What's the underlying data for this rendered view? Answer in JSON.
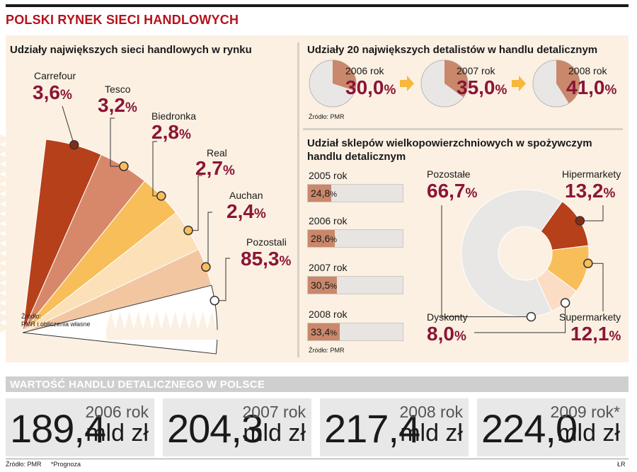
{
  "main_title": "POLSKI RYNEK SIECI HANDLOWYCH",
  "colors": {
    "title_red": "#b5121b",
    "value_red": "#8b1536",
    "panel_bg": "#fbf0e2"
  },
  "chart_data": [
    {
      "type": "pie",
      "title": "Udziały największych sieci handlowych w rynku",
      "labels": [
        "Carrefour",
        "Tesco",
        "Biedronka",
        "Real",
        "Auchan",
        "Pozostali"
      ],
      "values": [
        3.6,
        3.2,
        2.8,
        2.7,
        2.4,
        85.3
      ],
      "display": [
        "3,6",
        "3,2",
        "2,8",
        "2,7",
        "2,4",
        "85,3"
      ],
      "unit": "%",
      "colors": [
        "#b5401a",
        "#d8886a",
        "#f7be5a",
        "#fbe0b8",
        "#f3c6a2",
        "#ffffff"
      ],
      "source_label": "Źródło:",
      "source": "PMR i obliczenia własne"
    },
    {
      "type": "pie",
      "title": "Udziały 20 największych detalistów w handlu detalicznym",
      "years": [
        "2006 rok",
        "2007 rok",
        "2008 rok"
      ],
      "values": [
        30.0,
        35.0,
        41.0
      ],
      "display": [
        "30,0",
        "35,0",
        "41,0"
      ],
      "unit": "%",
      "source": "Źródło: PMR"
    },
    {
      "type": "bar",
      "title": "Udział sklepów wielkopowierzchniowych w spożywczym handlu detalicznym",
      "categories": [
        "2005 rok",
        "2006 rok",
        "2007 rok",
        "2008 rok"
      ],
      "values": [
        24.8,
        28.6,
        30.5,
        33.4
      ],
      "display": [
        "24,8",
        "28,6",
        "30,5",
        "33,4"
      ],
      "unit": "%",
      "xlim": [
        0,
        100
      ],
      "source": "Źródło: PMR"
    },
    {
      "type": "pie",
      "title": "Udział sklepów wielkopowierzchniowych w spożywczym handlu detalicznym (struktura)",
      "labels": [
        "Pozostałe",
        "Hipermarkety",
        "Supermarkety",
        "Dyskonty"
      ],
      "values": [
        66.7,
        13.2,
        12.1,
        8.0
      ],
      "display": [
        "66,7",
        "13,2",
        "12,1",
        "8,0"
      ],
      "unit": "%",
      "colors": [
        "#e9e7e5",
        "#b5401a",
        "#f7be5a",
        "#fbdcc4"
      ]
    }
  ],
  "retail_value": {
    "title": "WARTOŚĆ HANDLU DETALICZNEGO W POLSCE",
    "unit": "mld zł",
    "items": [
      {
        "value": "189,4",
        "year": "2006 rok"
      },
      {
        "value": "204,3",
        "year": "2007 rok"
      },
      {
        "value": "217,4",
        "year": "2008 rok"
      },
      {
        "value": "224,0",
        "year": "2009 rok*"
      }
    ],
    "source": "Źródło: PMR",
    "note": "*Prognoza",
    "author": "ŁR"
  }
}
